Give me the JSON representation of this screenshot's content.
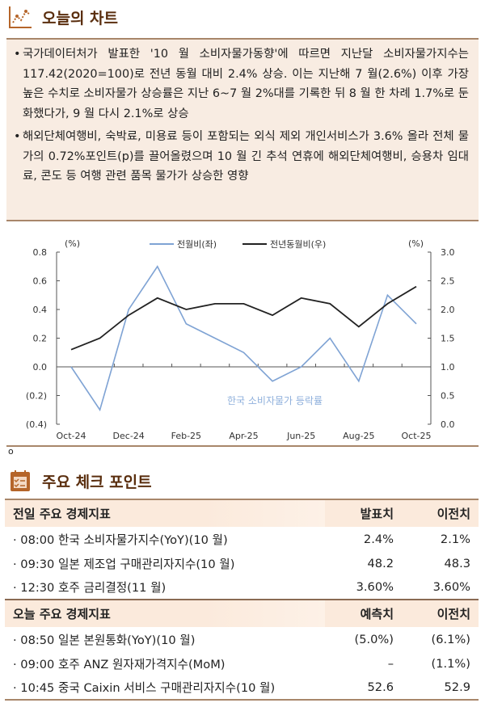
{
  "chart_section": {
    "title": "오늘의 차트",
    "icon": "line-chart-icon"
  },
  "summary": [
    "국가데이터처가 발표한 '10 월 소비자물가동향'에 따르면 지난달 소비자물가지수는 117.42(2020=100)로 전년 동월 대비 2.4% 상승. 이는 지난해 7 월(2.6%) 이후 가장 높은 수치로 소비자물가 상승률은 지난 6~7 월 2%대를 기록한 뒤 8 월 한 차례 1.7%로 둔화했다가, 9 월 다시 2.1%로 상승",
    "해외단체여행비, 숙박료, 미용료 등이 포함되는 외식 제외 개인서비스가 3.6% 올라 전체 물가의 0.72%포인트(p)를 끌어올렸으며 10 월 긴 추석 연휴에 해외단체여행비, 승용차 임대료, 콘도 등 여행 관련 품목 물가가 상승한 영향"
  ],
  "chart_data": {
    "type": "line",
    "title": "한국 소비자물가 등락률",
    "x": [
      "Oct-24",
      "Nov-24",
      "Dec-24",
      "Jan-25",
      "Feb-25",
      "Mar-25",
      "Apr-25",
      "May-25",
      "Jun-25",
      "Jul-25",
      "Aug-25",
      "Sep-25",
      "Oct-25"
    ],
    "xtick_labels": [
      "Oct-24",
      "Dec-24",
      "Feb-25",
      "Apr-25",
      "Jun-25",
      "Aug-25",
      "Oct-25"
    ],
    "left_unit": "(%)",
    "right_unit": "(%)",
    "left_ylim": [
      -0.4,
      0.8
    ],
    "right_ylim": [
      0.0,
      3.0
    ],
    "left_ticks": [
      "0.8",
      "0.6",
      "0.4",
      "0.2",
      "0.0",
      "(0.2)",
      "(0.4)"
    ],
    "right_ticks": [
      "3.0",
      "2.5",
      "2.0",
      "1.5",
      "1.0",
      "0.5",
      "0.0"
    ],
    "legend_position": "top",
    "series": [
      {
        "name": "전월비(좌)",
        "axis": "left",
        "color": "#7fa3d4",
        "values": [
          0.0,
          -0.3,
          0.4,
          0.7,
          0.3,
          0.2,
          0.1,
          -0.1,
          0.0,
          0.2,
          -0.1,
          0.5,
          0.3
        ]
      },
      {
        "name": "전년동월비(우)",
        "axis": "right",
        "color": "#222222",
        "values": [
          1.3,
          1.5,
          1.9,
          2.2,
          2.0,
          2.1,
          2.1,
          1.9,
          2.2,
          2.1,
          1.7,
          2.1,
          2.4
        ]
      }
    ]
  },
  "footnote_mark": "o",
  "check_section": {
    "title": "주요 체크 포인트",
    "icon": "checklist-calendar-icon"
  },
  "yesterday": {
    "header": [
      "전일 주요 경제지표",
      "발표치",
      "이전치"
    ],
    "rows": [
      [
        "· 08:00 한국 소비자물가지수(YoY)(10 월)",
        "2.4%",
        "2.1%"
      ],
      [
        "· 09:30 일본 제조업 구매관리자지수(10 월)",
        "48.2",
        "48.3"
      ],
      [
        "· 12:30 호주 금리결정(11 월)",
        "3.60%",
        "3.60%"
      ]
    ]
  },
  "today": {
    "header": [
      "오늘 주요 경제지표",
      "예측치",
      "이전치"
    ],
    "rows": [
      [
        "· 08:50 일본 본원통화(YoY)(10 월)",
        "(5.0%)",
        "(6.1%)"
      ],
      [
        "· 09:00 호주 ANZ 원자재가격지수(MoM)",
        "–",
        "(1.1%)"
      ],
      [
        "· 10:45 중국 Caixin 서비스 구매관리자지수(10 월)",
        "52.6",
        "52.9"
      ]
    ]
  }
}
